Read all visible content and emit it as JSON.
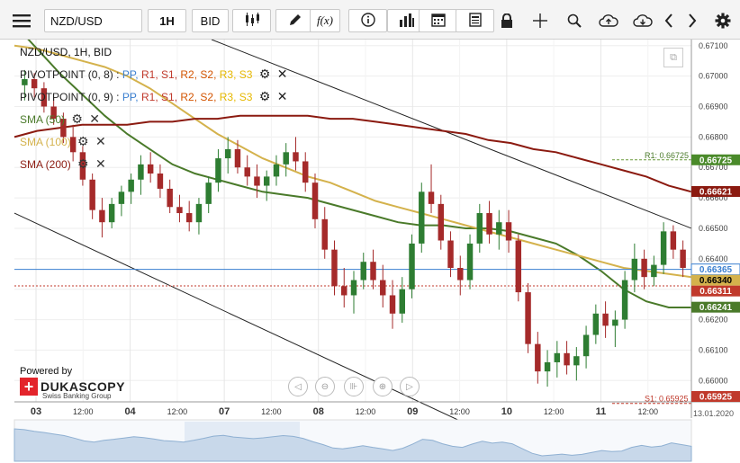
{
  "toolbar": {
    "instrument": "NZD/USD",
    "period": "1H",
    "side": "BID",
    "fx_label": "f(x)"
  },
  "legend": {
    "title": "NZD/USD, 1H, BID",
    "pivot1_name": "PIVOTPOINT (0, 8)",
    "pivot2_name": "PIVOTPOINT (0, 9)",
    "pivot_pp": "PP,",
    "pivot_r1": "R1,",
    "pivot_s1": "S1,",
    "pivot_r2": "R2,",
    "pivot_s2": "S2,",
    "pivot_r3": "R3,",
    "pivot_s3": "S3",
    "sma50": "SMA (50)",
    "sma100": "SMA (100)",
    "sma200": "SMA (200)"
  },
  "branding": {
    "powered_by": "Powered by",
    "company": "DUKASCOPY",
    "tagline": "Swiss Banking Group"
  },
  "colors": {
    "candle_up": "#2e7d32",
    "candle_down": "#a52a2a",
    "sma50": "#4a7a2a",
    "sma100": "#d4b24c",
    "sma200": "#8b1a10",
    "pivot_pp": "#3a7fd0",
    "pivot_r1": "#c0392b",
    "pivot_s1": "#c0392b",
    "pivot_r2": "#d35400",
    "pivot_s2": "#d35400",
    "pivot_r3": "#e6b800",
    "pivot_s3": "#e6b800",
    "bid_line": "#3a7fd0",
    "ask_line": "#c0392b"
  },
  "chart_data": {
    "type": "candlestick",
    "instrument": "NZD/USD",
    "timeframe": "1H",
    "price_axis": {
      "range": [
        0.65925,
        0.6712
      ],
      "ticks": [
        "0.67100",
        "0.67000",
        "0.66900",
        "0.66800",
        "0.66700",
        "0.66600",
        "0.66500",
        "0.66400",
        "0.66300",
        "0.66200",
        "0.66100",
        "0.66000"
      ]
    },
    "time_axis": {
      "labels": [
        {
          "text": "03",
          "major": true
        },
        {
          "text": "12:00",
          "major": false
        },
        {
          "text": "04",
          "major": true
        },
        {
          "text": "12:00",
          "major": false
        },
        {
          "text": "07",
          "major": true
        },
        {
          "text": "12:00",
          "major": false
        },
        {
          "text": "08",
          "major": true
        },
        {
          "text": "12:00",
          "major": false
        },
        {
          "text": "09",
          "major": true
        },
        {
          "text": "12:00",
          "major": false
        },
        {
          "text": "10",
          "major": true
        },
        {
          "text": "12:00",
          "major": false
        },
        {
          "text": "11",
          "major": true
        },
        {
          "text": "12:00",
          "major": false
        }
      ],
      "current_date": "13.01.2020"
    },
    "price_badges": [
      {
        "label": "0.66725",
        "value": 0.66725,
        "kind": "r1"
      },
      {
        "label": "0.66621",
        "value": 0.66621,
        "kind": "sma200"
      },
      {
        "label": "0.66365",
        "value": 0.66365,
        "kind": "bid"
      },
      {
        "label": "0.66340",
        "value": 0.6634,
        "kind": "sma100"
      },
      {
        "label": "0.66311",
        "value": 0.66311,
        "kind": "ask"
      },
      {
        "label": "0.66241",
        "value": 0.66241,
        "kind": "sma50"
      },
      {
        "label": "0.65925",
        "value": 0.65925,
        "kind": "s1"
      }
    ],
    "pivot_levels": [
      {
        "label": "R1: 0.66725",
        "value": 0.66725
      },
      {
        "label": "PP",
        "value": 0.6635
      },
      {
        "label": "S1: 0.65925",
        "value": 0.65925
      }
    ],
    "candles": [
      {
        "o": 0.6697,
        "h": 0.6702,
        "l": 0.6692,
        "c": 0.6699
      },
      {
        "o": 0.6699,
        "h": 0.6701,
        "l": 0.6693,
        "c": 0.6696
      },
      {
        "o": 0.6696,
        "h": 0.6698,
        "l": 0.6688,
        "c": 0.669
      },
      {
        "o": 0.669,
        "h": 0.6693,
        "l": 0.6684,
        "c": 0.6686
      },
      {
        "o": 0.6686,
        "h": 0.6688,
        "l": 0.6678,
        "c": 0.668
      },
      {
        "o": 0.668,
        "h": 0.6684,
        "l": 0.6672,
        "c": 0.6675
      },
      {
        "o": 0.6675,
        "h": 0.6677,
        "l": 0.6664,
        "c": 0.6666
      },
      {
        "o": 0.6666,
        "h": 0.6668,
        "l": 0.6653,
        "c": 0.6656
      },
      {
        "o": 0.6656,
        "h": 0.666,
        "l": 0.6647,
        "c": 0.6652
      },
      {
        "o": 0.6652,
        "h": 0.666,
        "l": 0.665,
        "c": 0.6658
      },
      {
        "o": 0.6658,
        "h": 0.6664,
        "l": 0.6654,
        "c": 0.6662
      },
      {
        "o": 0.6662,
        "h": 0.6668,
        "l": 0.6658,
        "c": 0.6666
      },
      {
        "o": 0.6666,
        "h": 0.6674,
        "l": 0.6661,
        "c": 0.6671
      },
      {
        "o": 0.6671,
        "h": 0.6675,
        "l": 0.6665,
        "c": 0.6668
      },
      {
        "o": 0.6668,
        "h": 0.6671,
        "l": 0.666,
        "c": 0.6663
      },
      {
        "o": 0.6663,
        "h": 0.6666,
        "l": 0.6655,
        "c": 0.6657
      },
      {
        "o": 0.6657,
        "h": 0.6661,
        "l": 0.6652,
        "c": 0.6655
      },
      {
        "o": 0.6655,
        "h": 0.6659,
        "l": 0.6649,
        "c": 0.6652
      },
      {
        "o": 0.6652,
        "h": 0.666,
        "l": 0.6648,
        "c": 0.6658
      },
      {
        "o": 0.6658,
        "h": 0.6667,
        "l": 0.6655,
        "c": 0.6665
      },
      {
        "o": 0.6665,
        "h": 0.6676,
        "l": 0.6662,
        "c": 0.6673
      },
      {
        "o": 0.6673,
        "h": 0.668,
        "l": 0.6668,
        "c": 0.6676
      },
      {
        "o": 0.6676,
        "h": 0.6679,
        "l": 0.6668,
        "c": 0.667
      },
      {
        "o": 0.667,
        "h": 0.6674,
        "l": 0.6664,
        "c": 0.6667
      },
      {
        "o": 0.6667,
        "h": 0.6671,
        "l": 0.666,
        "c": 0.6664
      },
      {
        "o": 0.6664,
        "h": 0.6669,
        "l": 0.6659,
        "c": 0.6667
      },
      {
        "o": 0.6667,
        "h": 0.6674,
        "l": 0.6664,
        "c": 0.6671
      },
      {
        "o": 0.6671,
        "h": 0.6678,
        "l": 0.6667,
        "c": 0.6675
      },
      {
        "o": 0.6675,
        "h": 0.668,
        "l": 0.6669,
        "c": 0.6672
      },
      {
        "o": 0.6672,
        "h": 0.6675,
        "l": 0.6662,
        "c": 0.6665
      },
      {
        "o": 0.6665,
        "h": 0.6668,
        "l": 0.665,
        "c": 0.6653
      },
      {
        "o": 0.6653,
        "h": 0.6657,
        "l": 0.664,
        "c": 0.6643
      },
      {
        "o": 0.6643,
        "h": 0.6646,
        "l": 0.6628,
        "c": 0.6631
      },
      {
        "o": 0.6631,
        "h": 0.6637,
        "l": 0.6624,
        "c": 0.6628
      },
      {
        "o": 0.6628,
        "h": 0.6636,
        "l": 0.6622,
        "c": 0.6633
      },
      {
        "o": 0.6633,
        "h": 0.6642,
        "l": 0.663,
        "c": 0.6639
      },
      {
        "o": 0.6639,
        "h": 0.6643,
        "l": 0.663,
        "c": 0.6633
      },
      {
        "o": 0.6633,
        "h": 0.6638,
        "l": 0.6624,
        "c": 0.6628
      },
      {
        "o": 0.6628,
        "h": 0.6633,
        "l": 0.6617,
        "c": 0.6622
      },
      {
        "o": 0.6622,
        "h": 0.6634,
        "l": 0.6619,
        "c": 0.663
      },
      {
        "o": 0.663,
        "h": 0.6648,
        "l": 0.6627,
        "c": 0.6645
      },
      {
        "o": 0.6645,
        "h": 0.6665,
        "l": 0.6642,
        "c": 0.6662
      },
      {
        "o": 0.6662,
        "h": 0.6671,
        "l": 0.6655,
        "c": 0.6658
      },
      {
        "o": 0.6658,
        "h": 0.6661,
        "l": 0.6643,
        "c": 0.6646
      },
      {
        "o": 0.6646,
        "h": 0.6649,
        "l": 0.6634,
        "c": 0.6637
      },
      {
        "o": 0.6637,
        "h": 0.6641,
        "l": 0.6628,
        "c": 0.6633
      },
      {
        "o": 0.6633,
        "h": 0.6648,
        "l": 0.663,
        "c": 0.6645
      },
      {
        "o": 0.6645,
        "h": 0.6658,
        "l": 0.6642,
        "c": 0.6655
      },
      {
        "o": 0.6655,
        "h": 0.6659,
        "l": 0.6645,
        "c": 0.6648
      },
      {
        "o": 0.6648,
        "h": 0.6656,
        "l": 0.6643,
        "c": 0.6652
      },
      {
        "o": 0.6652,
        "h": 0.6656,
        "l": 0.6642,
        "c": 0.6646
      },
      {
        "o": 0.6646,
        "h": 0.6648,
        "l": 0.6626,
        "c": 0.6629
      },
      {
        "o": 0.6629,
        "h": 0.6632,
        "l": 0.6609,
        "c": 0.6612
      },
      {
        "o": 0.6612,
        "h": 0.6616,
        "l": 0.6599,
        "c": 0.6603
      },
      {
        "o": 0.6603,
        "h": 0.661,
        "l": 0.6598,
        "c": 0.6606
      },
      {
        "o": 0.6606,
        "h": 0.6613,
        "l": 0.6601,
        "c": 0.6609
      },
      {
        "o": 0.6609,
        "h": 0.6613,
        "l": 0.6602,
        "c": 0.6605
      },
      {
        "o": 0.6605,
        "h": 0.6611,
        "l": 0.66,
        "c": 0.6608
      },
      {
        "o": 0.6608,
        "h": 0.6618,
        "l": 0.6604,
        "c": 0.6615
      },
      {
        "o": 0.6615,
        "h": 0.6625,
        "l": 0.6612,
        "c": 0.6622
      },
      {
        "o": 0.6622,
        "h": 0.6626,
        "l": 0.6614,
        "c": 0.6618
      },
      {
        "o": 0.6618,
        "h": 0.6623,
        "l": 0.6611,
        "c": 0.662
      },
      {
        "o": 0.662,
        "h": 0.6636,
        "l": 0.6617,
        "c": 0.6633
      },
      {
        "o": 0.6633,
        "h": 0.6645,
        "l": 0.6629,
        "c": 0.664
      },
      {
        "o": 0.664,
        "h": 0.6643,
        "l": 0.663,
        "c": 0.6634
      },
      {
        "o": 0.6634,
        "h": 0.6641,
        "l": 0.6631,
        "c": 0.6638
      },
      {
        "o": 0.6638,
        "h": 0.6652,
        "l": 0.6635,
        "c": 0.6649
      },
      {
        "o": 0.6649,
        "h": 0.6651,
        "l": 0.664,
        "c": 0.6643
      },
      {
        "o": 0.6643,
        "h": 0.6646,
        "l": 0.6634,
        "c": 0.6637
      }
    ],
    "sma_series": [
      {
        "name": "SMA (50)",
        "values": [
          0.6717,
          0.6709,
          0.6701,
          0.6694,
          0.6687,
          0.6681,
          0.6676,
          0.6671,
          0.6668,
          0.6666,
          0.6664,
          0.6662,
          0.6661,
          0.666,
          0.6658,
          0.6656,
          0.6654,
          0.6652,
          0.6651,
          0.6651,
          0.665,
          0.665,
          0.6649,
          0.6647,
          0.6645,
          0.6641,
          0.6636,
          0.663,
          0.6626,
          0.6624,
          0.6624
        ]
      },
      {
        "name": "SMA (100)",
        "values": [
          0.671,
          0.6709,
          0.6707,
          0.6705,
          0.6703,
          0.67,
          0.6696,
          0.6691,
          0.6686,
          0.6681,
          0.6677,
          0.6673,
          0.667,
          0.6667,
          0.6665,
          0.6662,
          0.6659,
          0.6657,
          0.6655,
          0.6653,
          0.6651,
          0.6649,
          0.6647,
          0.6645,
          0.6643,
          0.6641,
          0.6639,
          0.6637,
          0.6636,
          0.6635,
          0.6634
        ]
      },
      {
        "name": "SMA (200)",
        "values": [
          0.668,
          0.6682,
          0.6683,
          0.6684,
          0.6684,
          0.6684,
          0.6685,
          0.6685,
          0.6686,
          0.6686,
          0.6687,
          0.6687,
          0.6687,
          0.6687,
          0.6686,
          0.6686,
          0.6685,
          0.6684,
          0.6683,
          0.6682,
          0.6681,
          0.6679,
          0.6678,
          0.6676,
          0.6675,
          0.6673,
          0.6671,
          0.6669,
          0.6667,
          0.6664,
          0.6662
        ]
      }
    ],
    "trend_channel": [
      {
        "from": 0.6712,
        "to": 0.665
      },
      {
        "from": 0.6655,
        "to": 0.658
      }
    ]
  }
}
